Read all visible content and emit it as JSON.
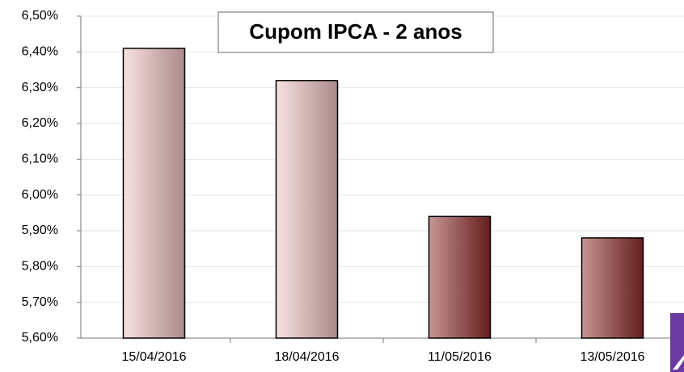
{
  "chart_data": {
    "type": "bar",
    "title": "Cupom IPCA - 2 anos",
    "categories": [
      "15/04/2016",
      "18/04/2016",
      "11/05/2016",
      "13/05/2016"
    ],
    "values": [
      6.41,
      6.32,
      5.94,
      5.88
    ],
    "colors": [
      "#f3c3c3",
      "#f3c3c3",
      "#8f2a2a",
      "#8f2a2a"
    ],
    "ylim": [
      5.6,
      6.5
    ],
    "yticks": [
      {
        "value": 5.6,
        "label": "5,60%"
      },
      {
        "value": 5.7,
        "label": "5,70%"
      },
      {
        "value": 5.8,
        "label": "5,80%"
      },
      {
        "value": 5.9,
        "label": "5,90%"
      },
      {
        "value": 6.0,
        "label": "6,00%"
      },
      {
        "value": 6.1,
        "label": "6,10%"
      },
      {
        "value": 6.2,
        "label": "6,20%"
      },
      {
        "value": 6.3,
        "label": "6,30%"
      },
      {
        "value": 6.4,
        "label": "6,40%"
      },
      {
        "value": 6.5,
        "label": "6,50%"
      }
    ],
    "grid": true
  }
}
